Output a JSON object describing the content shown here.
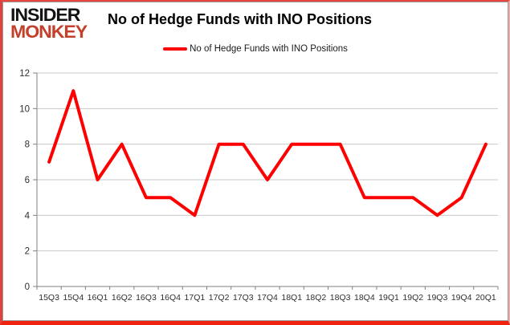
{
  "logo": {
    "line1": "INSIDER",
    "line2": "MONKEY",
    "color1": "#131313",
    "color2": "#c3402b"
  },
  "header": {
    "title": "No of Hedge Funds with INO Positions"
  },
  "legend": {
    "label": "No of Hedge Funds with INO Positions",
    "color": "#ff0000"
  },
  "chart_data": {
    "type": "line",
    "title": "No of Hedge Funds with INO Positions",
    "categories": [
      "15Q3",
      "15Q4",
      "16Q1",
      "16Q2",
      "16Q3",
      "16Q4",
      "17Q1",
      "17Q2",
      "17Q3",
      "17Q4",
      "18Q1",
      "18Q2",
      "18Q3",
      "18Q4",
      "19Q1",
      "19Q2",
      "19Q3",
      "19Q4",
      "20Q1"
    ],
    "series": [
      {
        "name": "No of Hedge Funds with INO Positions",
        "values": [
          7,
          11,
          6,
          8,
          5,
          5,
          4,
          8,
          8,
          6,
          8,
          8,
          8,
          5,
          5,
          5,
          4,
          5,
          8
        ],
        "color": "#ff0000"
      }
    ],
    "xlabel": "",
    "ylabel": "",
    "ylim": [
      0,
      12
    ],
    "y_ticks": [
      0,
      2,
      4,
      6,
      8,
      10,
      12
    ],
    "grid": true,
    "legend_position": "top",
    "gridline_color": "#c8c8c8",
    "axis_color": "#808080",
    "tick_label_color": "#2e2e2e"
  }
}
